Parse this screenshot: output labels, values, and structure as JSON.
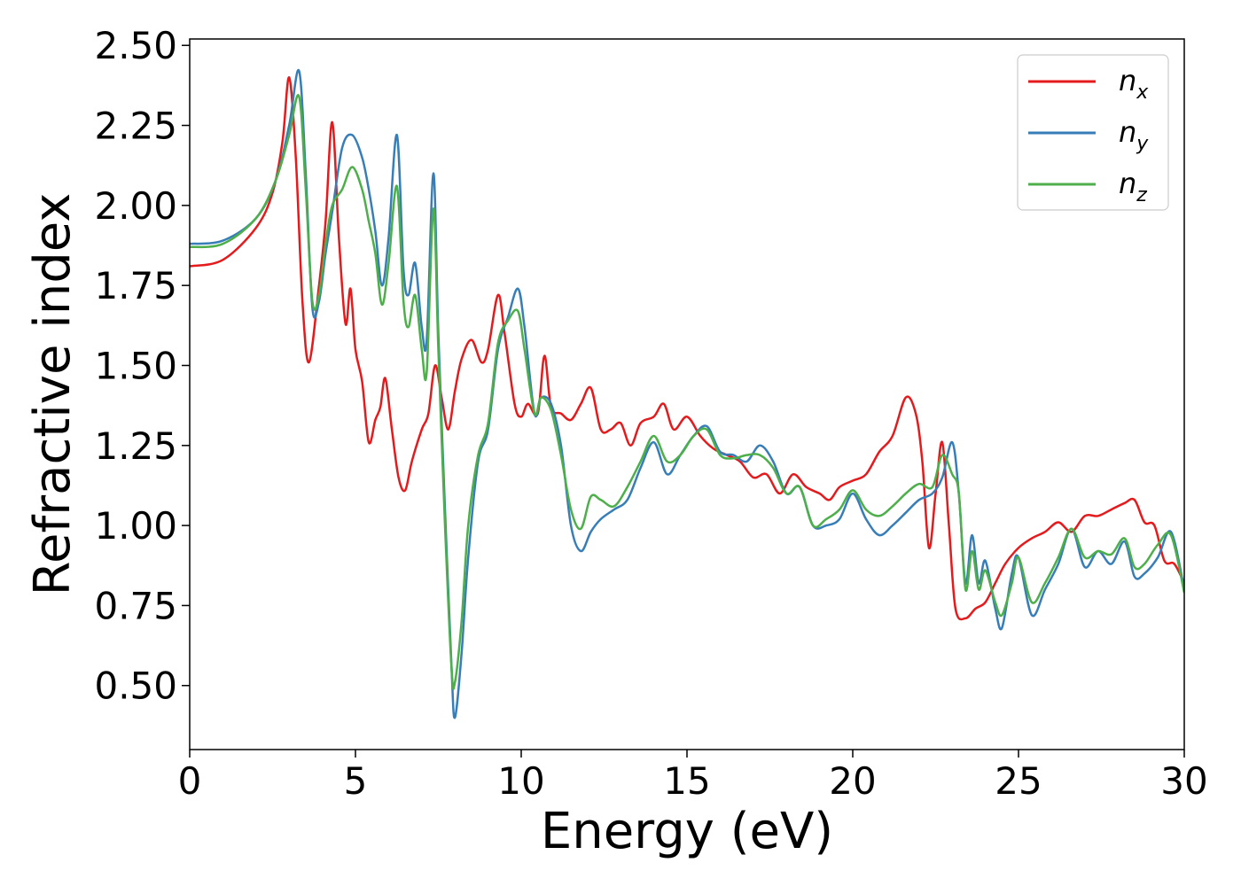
{
  "chart_data": {
    "type": "line",
    "title": "",
    "xlabel": "Energy (eV)",
    "ylabel": "Refractive index",
    "xlim": [
      0,
      30
    ],
    "ylim": [
      0.3,
      2.52
    ],
    "xticks": [
      "0",
      "5",
      "10",
      "15",
      "20",
      "25",
      "30"
    ],
    "yticks": [
      "0.50",
      "0.75",
      "1.00",
      "1.25",
      "1.50",
      "1.75",
      "2.00",
      "2.25",
      "2.50"
    ],
    "legend_position": "top-right",
    "grid": false,
    "series": [
      {
        "name": "n_x",
        "label_base": "n",
        "label_sub": "x",
        "color": "#e41a1c",
        "points": [
          [
            0,
            1.81
          ],
          [
            1.0,
            1.83
          ],
          [
            2.0,
            1.93
          ],
          [
            2.5,
            2.04
          ],
          [
            2.8,
            2.2
          ],
          [
            3.0,
            2.4
          ],
          [
            3.2,
            2.15
          ],
          [
            3.4,
            1.7
          ],
          [
            3.6,
            1.51
          ],
          [
            3.9,
            1.75
          ],
          [
            4.1,
            1.95
          ],
          [
            4.3,
            2.26
          ],
          [
            4.5,
            1.9
          ],
          [
            4.7,
            1.63
          ],
          [
            4.85,
            1.74
          ],
          [
            5.0,
            1.55
          ],
          [
            5.2,
            1.45
          ],
          [
            5.4,
            1.26
          ],
          [
            5.6,
            1.33
          ],
          [
            5.75,
            1.37
          ],
          [
            5.9,
            1.46
          ],
          [
            6.1,
            1.3
          ],
          [
            6.3,
            1.15
          ],
          [
            6.5,
            1.11
          ],
          [
            6.7,
            1.2
          ],
          [
            7.0,
            1.3
          ],
          [
            7.2,
            1.35
          ],
          [
            7.4,
            1.5
          ],
          [
            7.6,
            1.4
          ],
          [
            7.8,
            1.3
          ],
          [
            8.0,
            1.42
          ],
          [
            8.2,
            1.52
          ],
          [
            8.5,
            1.58
          ],
          [
            8.8,
            1.51
          ],
          [
            9.0,
            1.55
          ],
          [
            9.3,
            1.72
          ],
          [
            9.5,
            1.6
          ],
          [
            9.8,
            1.38
          ],
          [
            10.0,
            1.34
          ],
          [
            10.2,
            1.38
          ],
          [
            10.5,
            1.35
          ],
          [
            10.7,
            1.53
          ],
          [
            10.9,
            1.37
          ],
          [
            11.2,
            1.35
          ],
          [
            11.5,
            1.33
          ],
          [
            11.8,
            1.38
          ],
          [
            12.1,
            1.43
          ],
          [
            12.4,
            1.3
          ],
          [
            12.7,
            1.3
          ],
          [
            13.0,
            1.32
          ],
          [
            13.3,
            1.25
          ],
          [
            13.6,
            1.32
          ],
          [
            14.0,
            1.34
          ],
          [
            14.3,
            1.38
          ],
          [
            14.6,
            1.3
          ],
          [
            15.0,
            1.34
          ],
          [
            15.4,
            1.28
          ],
          [
            15.8,
            1.24
          ],
          [
            16.2,
            1.22
          ],
          [
            16.6,
            1.2
          ],
          [
            17.0,
            1.15
          ],
          [
            17.4,
            1.16
          ],
          [
            17.8,
            1.1
          ],
          [
            18.2,
            1.16
          ],
          [
            18.6,
            1.12
          ],
          [
            19.0,
            1.1
          ],
          [
            19.3,
            1.08
          ],
          [
            19.6,
            1.12
          ],
          [
            20.0,
            1.14
          ],
          [
            20.4,
            1.16
          ],
          [
            20.8,
            1.23
          ],
          [
            21.2,
            1.28
          ],
          [
            21.6,
            1.4
          ],
          [
            21.9,
            1.35
          ],
          [
            22.1,
            1.2
          ],
          [
            22.3,
            0.93
          ],
          [
            22.5,
            1.1
          ],
          [
            22.7,
            1.26
          ],
          [
            22.9,
            1.0
          ],
          [
            23.1,
            0.74
          ],
          [
            23.4,
            0.71
          ],
          [
            23.7,
            0.74
          ],
          [
            24.0,
            0.76
          ],
          [
            24.3,
            0.82
          ],
          [
            24.6,
            0.88
          ],
          [
            25.0,
            0.93
          ],
          [
            25.4,
            0.96
          ],
          [
            25.8,
            0.98
          ],
          [
            26.2,
            1.01
          ],
          [
            26.6,
            0.98
          ],
          [
            27.0,
            1.03
          ],
          [
            27.4,
            1.03
          ],
          [
            27.8,
            1.05
          ],
          [
            28.2,
            1.07
          ],
          [
            28.5,
            1.08
          ],
          [
            28.8,
            1.01
          ],
          [
            29.1,
            1.0
          ],
          [
            29.4,
            0.89
          ],
          [
            29.7,
            0.88
          ],
          [
            30.0,
            0.82
          ]
        ]
      },
      {
        "name": "n_y",
        "label_base": "n",
        "label_sub": "y",
        "color": "#377eb8",
        "points": [
          [
            0,
            1.88
          ],
          [
            1.0,
            1.89
          ],
          [
            2.0,
            1.96
          ],
          [
            2.6,
            2.08
          ],
          [
            3.0,
            2.25
          ],
          [
            3.3,
            2.42
          ],
          [
            3.5,
            2.1
          ],
          [
            3.7,
            1.68
          ],
          [
            3.9,
            1.7
          ],
          [
            4.1,
            1.85
          ],
          [
            4.3,
            1.98
          ],
          [
            4.6,
            2.18
          ],
          [
            4.9,
            2.22
          ],
          [
            5.2,
            2.15
          ],
          [
            5.4,
            2.05
          ],
          [
            5.6,
            1.92
          ],
          [
            5.8,
            1.75
          ],
          [
            6.0,
            1.9
          ],
          [
            6.25,
            2.22
          ],
          [
            6.45,
            1.8
          ],
          [
            6.6,
            1.72
          ],
          [
            6.8,
            1.82
          ],
          [
            7.0,
            1.62
          ],
          [
            7.15,
            1.58
          ],
          [
            7.35,
            2.1
          ],
          [
            7.5,
            1.6
          ],
          [
            7.7,
            1.05
          ],
          [
            7.9,
            0.55
          ],
          [
            8.0,
            0.4
          ],
          [
            8.2,
            0.6
          ],
          [
            8.4,
            0.9
          ],
          [
            8.7,
            1.2
          ],
          [
            9.0,
            1.3
          ],
          [
            9.3,
            1.55
          ],
          [
            9.6,
            1.65
          ],
          [
            9.9,
            1.74
          ],
          [
            10.1,
            1.62
          ],
          [
            10.4,
            1.35
          ],
          [
            10.6,
            1.4
          ],
          [
            10.9,
            1.38
          ],
          [
            11.2,
            1.25
          ],
          [
            11.5,
            1.0
          ],
          [
            11.8,
            0.92
          ],
          [
            12.1,
            0.98
          ],
          [
            12.4,
            1.02
          ],
          [
            12.8,
            1.05
          ],
          [
            13.2,
            1.08
          ],
          [
            13.6,
            1.18
          ],
          [
            14.0,
            1.26
          ],
          [
            14.4,
            1.16
          ],
          [
            14.8,
            1.22
          ],
          [
            15.2,
            1.28
          ],
          [
            15.6,
            1.31
          ],
          [
            16.0,
            1.23
          ],
          [
            16.4,
            1.22
          ],
          [
            16.8,
            1.2
          ],
          [
            17.2,
            1.25
          ],
          [
            17.6,
            1.2
          ],
          [
            18.0,
            1.1
          ],
          [
            18.4,
            1.12
          ],
          [
            18.8,
            1.0
          ],
          [
            19.2,
            1.0
          ],
          [
            19.6,
            1.02
          ],
          [
            20.0,
            1.1
          ],
          [
            20.4,
            1.02
          ],
          [
            20.8,
            0.97
          ],
          [
            21.2,
            1.0
          ],
          [
            21.6,
            1.04
          ],
          [
            22.0,
            1.08
          ],
          [
            22.4,
            1.1
          ],
          [
            22.7,
            1.15
          ],
          [
            23.0,
            1.26
          ],
          [
            23.2,
            1.1
          ],
          [
            23.4,
            0.82
          ],
          [
            23.6,
            0.97
          ],
          [
            23.8,
            0.82
          ],
          [
            24.0,
            0.89
          ],
          [
            24.3,
            0.74
          ],
          [
            24.5,
            0.68
          ],
          [
            24.8,
            0.85
          ],
          [
            25.0,
            0.9
          ],
          [
            25.4,
            0.72
          ],
          [
            25.8,
            0.8
          ],
          [
            26.2,
            0.88
          ],
          [
            26.6,
            0.99
          ],
          [
            27.0,
            0.87
          ],
          [
            27.4,
            0.92
          ],
          [
            27.8,
            0.88
          ],
          [
            28.2,
            0.95
          ],
          [
            28.5,
            0.84
          ],
          [
            28.8,
            0.85
          ],
          [
            29.2,
            0.9
          ],
          [
            29.6,
            0.98
          ],
          [
            30.0,
            0.8
          ]
        ]
      },
      {
        "name": "n_z",
        "label_base": "n",
        "label_sub": "z",
        "color": "#4daf4a",
        "points": [
          [
            0,
            1.87
          ],
          [
            1.0,
            1.88
          ],
          [
            2.0,
            1.96
          ],
          [
            2.6,
            2.08
          ],
          [
            3.0,
            2.22
          ],
          [
            3.3,
            2.34
          ],
          [
            3.5,
            2.05
          ],
          [
            3.7,
            1.7
          ],
          [
            3.9,
            1.72
          ],
          [
            4.1,
            1.88
          ],
          [
            4.3,
            2.0
          ],
          [
            4.6,
            2.05
          ],
          [
            4.9,
            2.12
          ],
          [
            5.2,
            2.05
          ],
          [
            5.4,
            1.95
          ],
          [
            5.6,
            1.85
          ],
          [
            5.8,
            1.69
          ],
          [
            6.0,
            1.82
          ],
          [
            6.25,
            2.06
          ],
          [
            6.45,
            1.7
          ],
          [
            6.6,
            1.62
          ],
          [
            6.8,
            1.72
          ],
          [
            7.0,
            1.55
          ],
          [
            7.15,
            1.48
          ],
          [
            7.35,
            1.99
          ],
          [
            7.5,
            1.55
          ],
          [
            7.7,
            1.0
          ],
          [
            7.9,
            0.55
          ],
          [
            8.0,
            0.51
          ],
          [
            8.2,
            0.7
          ],
          [
            8.4,
            1.0
          ],
          [
            8.7,
            1.22
          ],
          [
            9.0,
            1.32
          ],
          [
            9.3,
            1.57
          ],
          [
            9.6,
            1.64
          ],
          [
            9.9,
            1.67
          ],
          [
            10.1,
            1.55
          ],
          [
            10.4,
            1.35
          ],
          [
            10.6,
            1.4
          ],
          [
            10.9,
            1.36
          ],
          [
            11.2,
            1.22
          ],
          [
            11.5,
            1.05
          ],
          [
            11.8,
            0.99
          ],
          [
            12.1,
            1.09
          ],
          [
            12.4,
            1.08
          ],
          [
            12.8,
            1.06
          ],
          [
            13.2,
            1.12
          ],
          [
            13.6,
            1.2
          ],
          [
            14.0,
            1.28
          ],
          [
            14.4,
            1.2
          ],
          [
            14.8,
            1.22
          ],
          [
            15.2,
            1.28
          ],
          [
            15.6,
            1.3
          ],
          [
            16.0,
            1.22
          ],
          [
            16.4,
            1.21
          ],
          [
            16.8,
            1.22
          ],
          [
            17.2,
            1.22
          ],
          [
            17.6,
            1.18
          ],
          [
            18.0,
            1.1
          ],
          [
            18.4,
            1.12
          ],
          [
            18.8,
            1.0
          ],
          [
            19.2,
            1.02
          ],
          [
            19.6,
            1.05
          ],
          [
            20.0,
            1.11
          ],
          [
            20.4,
            1.05
          ],
          [
            20.8,
            1.03
          ],
          [
            21.2,
            1.06
          ],
          [
            21.6,
            1.1
          ],
          [
            22.0,
            1.13
          ],
          [
            22.4,
            1.12
          ],
          [
            22.7,
            1.22
          ],
          [
            23.0,
            1.16
          ],
          [
            23.2,
            1.1
          ],
          [
            23.4,
            0.8
          ],
          [
            23.6,
            0.92
          ],
          [
            23.8,
            0.8
          ],
          [
            24.0,
            0.86
          ],
          [
            24.3,
            0.76
          ],
          [
            24.5,
            0.72
          ],
          [
            24.8,
            0.82
          ],
          [
            25.0,
            0.9
          ],
          [
            25.4,
            0.76
          ],
          [
            25.8,
            0.82
          ],
          [
            26.2,
            0.9
          ],
          [
            26.6,
            0.99
          ],
          [
            27.0,
            0.9
          ],
          [
            27.4,
            0.92
          ],
          [
            27.8,
            0.91
          ],
          [
            28.2,
            0.96
          ],
          [
            28.5,
            0.87
          ],
          [
            28.8,
            0.88
          ],
          [
            29.2,
            0.94
          ],
          [
            29.6,
            0.97
          ],
          [
            30.0,
            0.79
          ]
        ]
      }
    ]
  }
}
